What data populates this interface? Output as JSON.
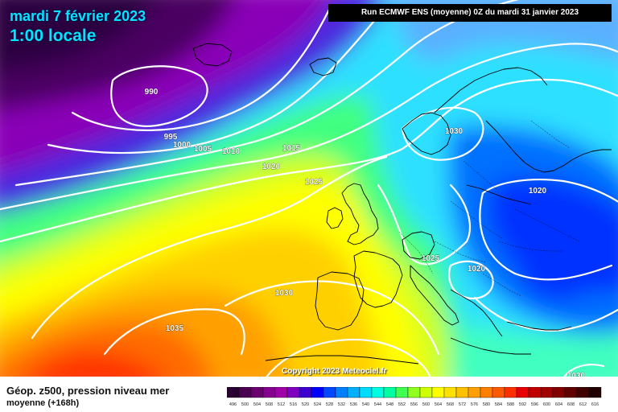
{
  "header": {
    "date": "mardi 7 février 2023",
    "time": "1:00 locale",
    "run": "Run ECMWF ENS (moyenne) 0Z du mardi 31 janvier 2023"
  },
  "footer": {
    "title": "Géop. z500, pression niveau mer",
    "subtitle": "moyenne   (+168h)",
    "copyright": "Copyright 2023 Meteociel.fr"
  },
  "isobar_labels": [
    "990",
    "995",
    "1000",
    "1005",
    "1010",
    "1015",
    "1020",
    "1025",
    "1030",
    "1030",
    "1020",
    "1025",
    "1020",
    "1030",
    "1035",
    "1030"
  ],
  "scale": {
    "labels": [
      "496",
      "500",
      "504",
      "508",
      "512",
      "516",
      "520",
      "524",
      "528",
      "532",
      "536",
      "540",
      "544",
      "548",
      "552",
      "556",
      "560",
      "564",
      "568",
      "572",
      "576",
      "580",
      "584",
      "588",
      "592",
      "596",
      "600",
      "604",
      "608",
      "612",
      "616"
    ],
    "colors": [
      "#2a0033",
      "#4b0050",
      "#6a0070",
      "#86008f",
      "#a000a8",
      "#8000c0",
      "#3d00d0",
      "#0000ff",
      "#0048ff",
      "#0080ff",
      "#00b0ff",
      "#00dcff",
      "#00ffe0",
      "#00ffa0",
      "#40ff50",
      "#90ff20",
      "#d0ff00",
      "#ffff00",
      "#ffe000",
      "#ffc000",
      "#ffa000",
      "#ff8000",
      "#ff5a00",
      "#ff3000",
      "#e80000",
      "#c00000",
      "#a00000",
      "#800000",
      "#600000",
      "#400000",
      "#200000"
    ]
  }
}
